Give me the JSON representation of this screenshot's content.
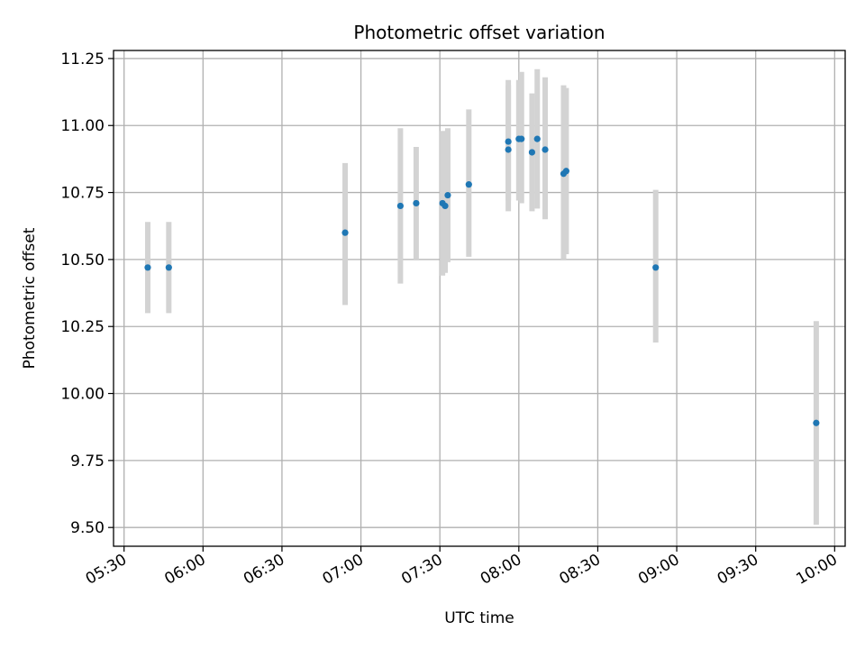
{
  "chart_data": {
    "type": "scatter",
    "title": "Photometric offset variation",
    "xlabel": "UTC time",
    "ylabel": "Photometric offset",
    "x_tick_labels": [
      "05:30",
      "06:00",
      "06:30",
      "07:00",
      "07:30",
      "08:00",
      "08:30",
      "09:00",
      "09:30",
      "10:00"
    ],
    "x_tick_minutes": [
      330,
      360,
      390,
      420,
      450,
      480,
      510,
      540,
      570,
      600
    ],
    "xlim_minutes": [
      326,
      604
    ],
    "y_ticks": [
      9.5,
      9.75,
      10.0,
      10.25,
      10.5,
      10.75,
      11.0,
      11.25
    ],
    "y_tick_labels": [
      "9.50",
      "9.75",
      "10.00",
      "10.25",
      "10.50",
      "10.75",
      "11.00",
      "11.25"
    ],
    "ylim": [
      9.43,
      11.28
    ],
    "grid": true,
    "colors": {
      "marker": "#1f77b4",
      "errorbar": "#d3d3d3",
      "grid": "#b0b0b0"
    },
    "points": [
      {
        "time": "05:39",
        "value": 10.47,
        "low": 10.3,
        "high": 10.64
      },
      {
        "time": "05:47",
        "value": 10.47,
        "low": 10.3,
        "high": 10.64
      },
      {
        "time": "06:54",
        "value": 10.6,
        "low": 10.33,
        "high": 10.86
      },
      {
        "time": "07:15",
        "value": 10.7,
        "low": 10.41,
        "high": 10.99
      },
      {
        "time": "07:21",
        "value": 10.71,
        "low": 10.5,
        "high": 10.92
      },
      {
        "time": "07:31",
        "value": 10.71,
        "low": 10.44,
        "high": 10.98
      },
      {
        "time": "07:32",
        "value": 10.7,
        "low": 10.45,
        "high": 10.96
      },
      {
        "time": "07:33",
        "value": 10.74,
        "low": 10.49,
        "high": 10.99
      },
      {
        "time": "07:41",
        "value": 10.78,
        "low": 10.51,
        "high": 11.06
      },
      {
        "time": "07:56",
        "value": 10.94,
        "low": 10.72,
        "high": 11.17
      },
      {
        "time": "07:56",
        "value": 10.91,
        "low": 10.68,
        "high": 11.15
      },
      {
        "time": "08:00",
        "value": 10.95,
        "low": 10.72,
        "high": 11.17
      },
      {
        "time": "08:01",
        "value": 10.95,
        "low": 10.71,
        "high": 11.2
      },
      {
        "time": "08:05",
        "value": 10.9,
        "low": 10.68,
        "high": 11.12
      },
      {
        "time": "08:07",
        "value": 10.95,
        "low": 10.69,
        "high": 11.21
      },
      {
        "time": "08:10",
        "value": 10.91,
        "low": 10.65,
        "high": 11.18
      },
      {
        "time": "08:17",
        "value": 10.82,
        "low": 10.5,
        "high": 11.15
      },
      {
        "time": "08:18",
        "value": 10.83,
        "low": 10.52,
        "high": 11.14
      },
      {
        "time": "08:52",
        "value": 10.47,
        "low": 10.19,
        "high": 10.76
      },
      {
        "time": "09:53",
        "value": 9.89,
        "low": 9.51,
        "high": 10.27
      }
    ]
  }
}
